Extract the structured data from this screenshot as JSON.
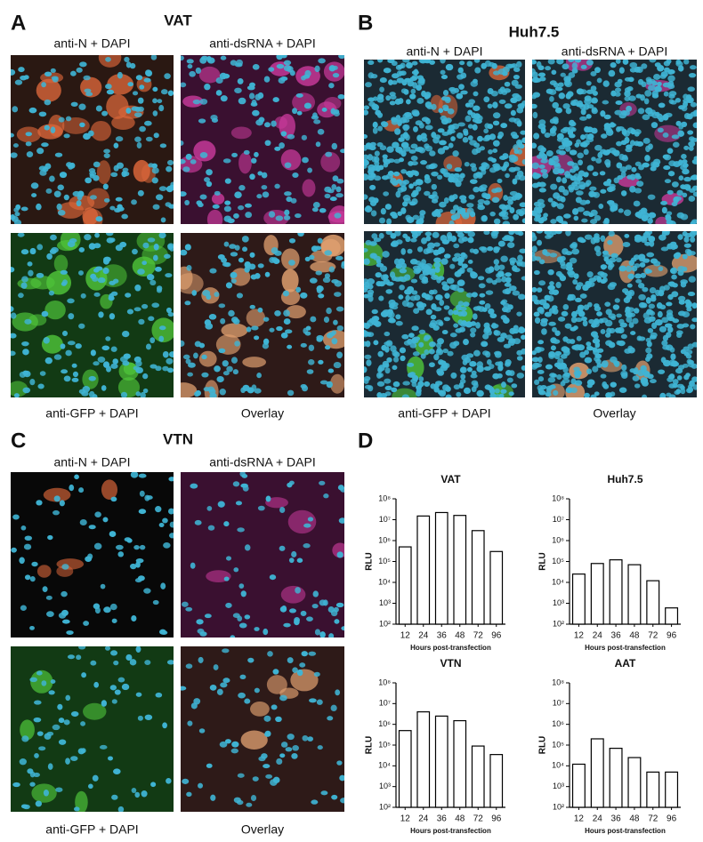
{
  "panels": [
    {
      "letter": "A",
      "title": "VAT",
      "images": [
        {
          "label": "anti-N + DAPI"
        },
        {
          "label": "anti-dsRNA + DAPI"
        },
        {
          "label": "anti-GFP + DAPI"
        },
        {
          "label": "Overlay"
        }
      ]
    },
    {
      "letter": "B",
      "title": "Huh7.5",
      "images": [
        {
          "label": "anti-N + DAPI"
        },
        {
          "label": "anti-dsRNA + DAPI"
        },
        {
          "label": "anti-GFP + DAPI"
        },
        {
          "label": "Overlay"
        }
      ]
    },
    {
      "letter": "C",
      "title": "VTN",
      "images": [
        {
          "label": "anti-N + DAPI"
        },
        {
          "label": "anti-dsRNA + DAPI"
        },
        {
          "label": "anti-GFP + DAPI"
        },
        {
          "label": "Overlay"
        }
      ]
    }
  ],
  "panel_d_letter": "D",
  "chart_data": [
    {
      "type": "bar",
      "title": "VAT",
      "xlabel": "Hours post-transfection",
      "ylabel": "RLU",
      "log": true,
      "color": "#ffffff",
      "categories": [
        "12",
        "24",
        "36",
        "48",
        "72",
        "96"
      ],
      "values": [
        500000,
        15000000,
        22000000,
        16000000,
        3000000,
        300000
      ],
      "ylim": [
        100,
        100000000
      ],
      "yticks": [
        {
          "value": 100,
          "label": "10²"
        },
        {
          "value": 1000,
          "label": "10³"
        },
        {
          "value": 10000,
          "label": "10⁴"
        },
        {
          "value": 100000,
          "label": "10⁵"
        },
        {
          "value": 1000000,
          "label": "10⁶"
        },
        {
          "value": 10000000,
          "label": "10⁷"
        },
        {
          "value": 100000000,
          "label": "10⁸"
        }
      ]
    },
    {
      "type": "bar",
      "title": "Huh7.5",
      "xlabel": "Hours post-transfection",
      "ylabel": "RLU",
      "log": true,
      "color": "#ffffff",
      "categories": [
        "12",
        "24",
        "36",
        "48",
        "72",
        "96"
      ],
      "values": [
        25000,
        80000,
        120000,
        70000,
        12000,
        600
      ],
      "ylim": [
        100,
        100000000
      ],
      "yticks": [
        {
          "value": 100,
          "label": "10²"
        },
        {
          "value": 1000,
          "label": "10³"
        },
        {
          "value": 10000,
          "label": "10⁴"
        },
        {
          "value": 100000,
          "label": "10⁵"
        },
        {
          "value": 1000000,
          "label": "10⁶"
        },
        {
          "value": 10000000,
          "label": "10⁷"
        },
        {
          "value": 100000000,
          "label": "10⁸"
        }
      ]
    },
    {
      "type": "bar",
      "title": "VTN",
      "xlabel": "Hours post-transfection",
      "ylabel": "RLU",
      "log": true,
      "color": "#ffffff",
      "categories": [
        "12",
        "24",
        "36",
        "48",
        "72",
        "96"
      ],
      "values": [
        500000,
        4000000,
        2500000,
        1500000,
        90000,
        35000
      ],
      "ylim": [
        100,
        100000000
      ],
      "yticks": [
        {
          "value": 100,
          "label": "10²"
        },
        {
          "value": 1000,
          "label": "10³"
        },
        {
          "value": 10000,
          "label": "10⁴"
        },
        {
          "value": 100000,
          "label": "10⁵"
        },
        {
          "value": 1000000,
          "label": "10⁶"
        },
        {
          "value": 10000000,
          "label": "10⁷"
        },
        {
          "value": 100000000,
          "label": "10⁸"
        }
      ]
    },
    {
      "type": "bar",
      "title": "AAT",
      "xlabel": "Hours post-transfection",
      "ylabel": "RLU",
      "log": true,
      "color": "#ffffff",
      "categories": [
        "12",
        "24",
        "36",
        "48",
        "72",
        "96"
      ],
      "values": [
        12000,
        200000,
        70000,
        25000,
        5000,
        5000
      ],
      "ylim": [
        100,
        100000000
      ],
      "yticks": [
        {
          "value": 100,
          "label": "10²"
        },
        {
          "value": 1000,
          "label": "10³"
        },
        {
          "value": 10000,
          "label": "10⁴"
        },
        {
          "value": 100000,
          "label": "10⁵"
        },
        {
          "value": 1000000,
          "label": "10⁶"
        },
        {
          "value": 10000000,
          "label": "10⁷"
        },
        {
          "value": 100000000,
          "label": "10⁸"
        }
      ]
    }
  ]
}
